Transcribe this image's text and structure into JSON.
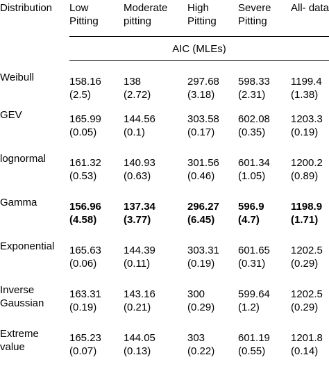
{
  "table": {
    "headers": [
      {
        "line1": "Distribution",
        "line2": ""
      },
      {
        "line1": "Low",
        "line2": "Pitting"
      },
      {
        "line1": "Moderate",
        "line2": "pitting"
      },
      {
        "line1": "High",
        "line2": "Pitting"
      },
      {
        "line1": "Severe",
        "line2": "Pitting"
      },
      {
        "line1": "All- data",
        "line2": ""
      }
    ],
    "subheader": "AIC   (MLEs)",
    "rows": [
      {
        "name1": "Weibull",
        "name2": "",
        "cells": [
          {
            "v": "158.16",
            "p": "(2.5)"
          },
          {
            "v": "138",
            "p": "(2.72)"
          },
          {
            "v": "297.68",
            "p": "(3.18)"
          },
          {
            "v": "598.33",
            "p": "(2.31)"
          },
          {
            "v": "1199.4",
            "p": "(1.38)"
          }
        ]
      },
      {
        "name1": "GEV",
        "name2": "",
        "cells": [
          {
            "v": "165.99",
            "p": "(0.05)"
          },
          {
            "v": "144.56",
            "p": "(0.1)"
          },
          {
            "v": "303.58",
            "p": "(0.17)"
          },
          {
            "v": "602.08",
            "p": "(0.35)"
          },
          {
            "v": "1203.3",
            "p": "(0.19)"
          }
        ]
      },
      {
        "name1": "lognormal",
        "name2": "",
        "cells": [
          {
            "v": "161.32",
            "p": "(0.53)"
          },
          {
            "v": "140.93",
            "p": "(0.63)"
          },
          {
            "v": "301.56",
            "p": "(0.46)"
          },
          {
            "v": "601.34",
            "p": "(1.05)"
          },
          {
            "v": "1200.2",
            "p": "(0.89)"
          }
        ]
      },
      {
        "name1": "Gamma",
        "name2": "",
        "cells": [
          {
            "v": "156.96",
            "p": "(4.58)"
          },
          {
            "v": "137.34",
            "p": "(3.77)"
          },
          {
            "v": "296.27",
            "p": "(6.45)"
          },
          {
            "v": "596.9",
            "p": "(4.7)"
          },
          {
            "v": "1198.9",
            "p": "(1.71)"
          }
        ]
      },
      {
        "name1": "Exponential",
        "name2": "",
        "cells": [
          {
            "v": "165.63",
            "p": "(0.06)"
          },
          {
            "v": "144.39",
            "p": "(0.11)"
          },
          {
            "v": "303.31",
            "p": "(0.19)"
          },
          {
            "v": "601.65",
            "p": "(0.31)"
          },
          {
            "v": "1202.5",
            "p": "(0.29)"
          }
        ]
      },
      {
        "name1": "Inverse",
        "name2": "Gaussian",
        "cells": [
          {
            "v": "163.31",
            "p": "(0.19)"
          },
          {
            "v": "143.16",
            "p": "(0.21)"
          },
          {
            "v": "300",
            "p": "(0.29)"
          },
          {
            "v": "599.64",
            "p": "(1.2)"
          },
          {
            "v": "1202.5",
            "p": "(0.29)"
          }
        ]
      },
      {
        "name1": "Extreme",
        "name2": "value",
        "cells": [
          {
            "v": "165.23",
            "p": "(0.07)"
          },
          {
            "v": "144.05",
            "p": "(0.13)"
          },
          {
            "v": "303",
            "p": "(0.22)"
          },
          {
            "v": "601.19",
            "p": "(0.55)"
          },
          {
            "v": "1201.8",
            "p": "(0.14)"
          }
        ]
      }
    ]
  }
}
